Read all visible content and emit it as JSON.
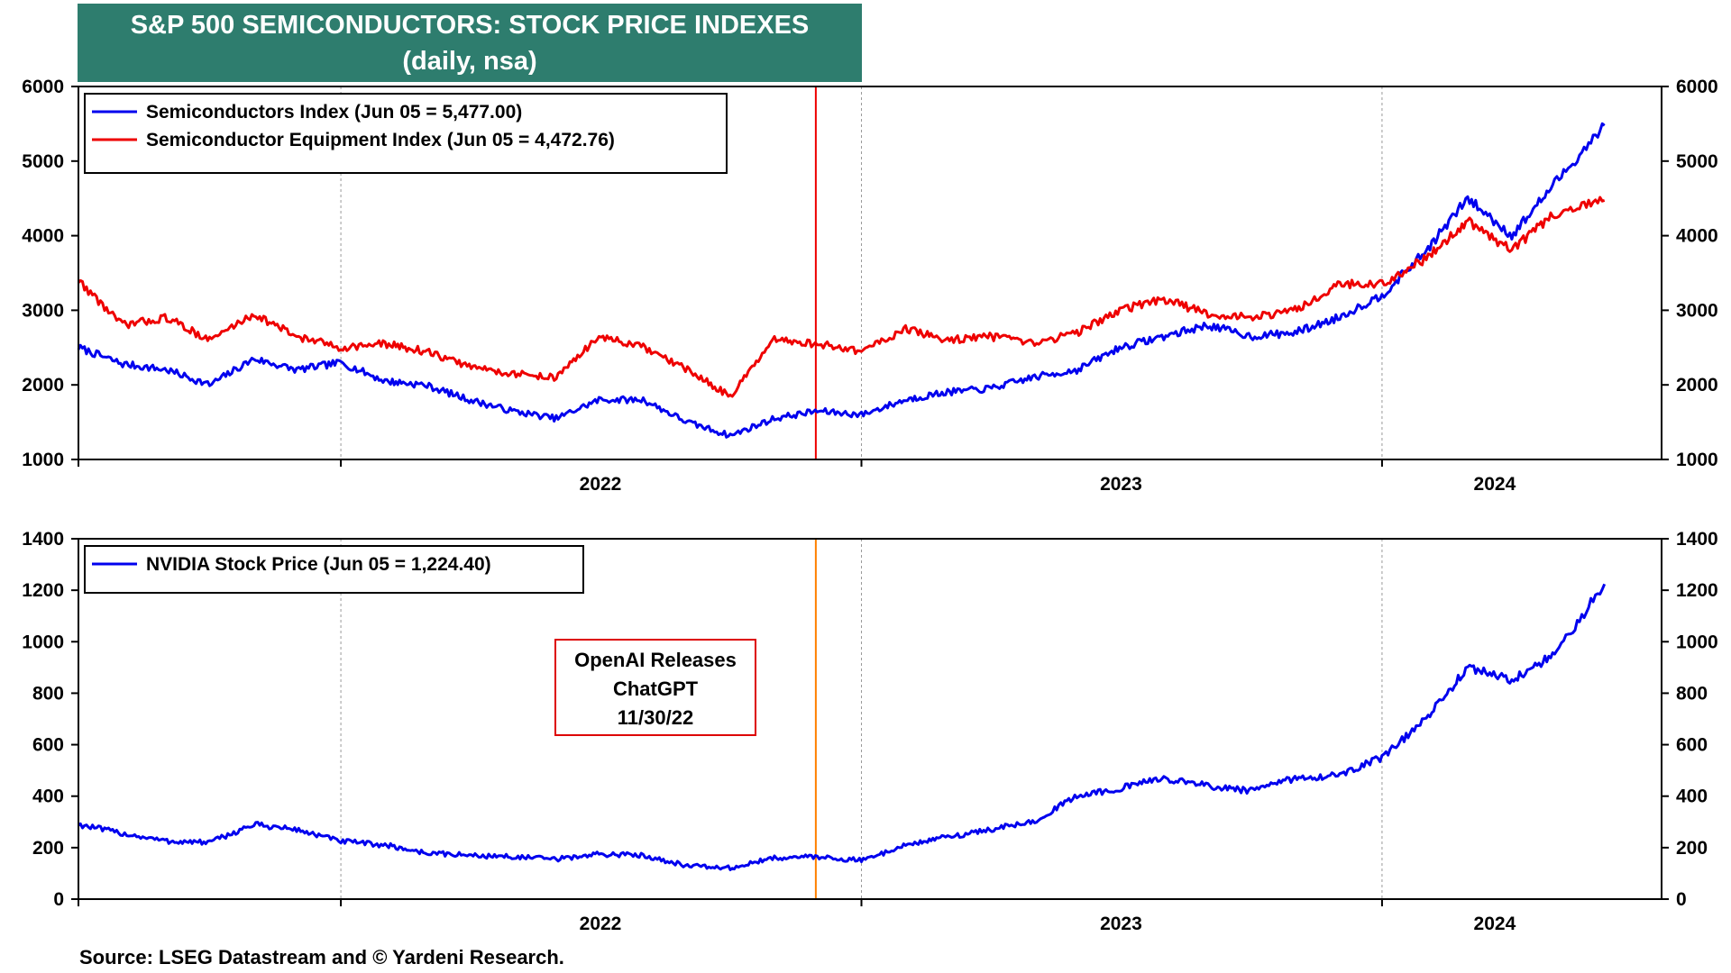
{
  "title": "S&P 500 SEMICONDUCTORS: STOCK PRICE INDEXES",
  "subtitle": "(daily, nsa)",
  "source": "Source: LSEG Datastream and © Yardeni Research.",
  "colors": {
    "title_bg": "#2e7d6e",
    "blue": "#0000ee",
    "red": "#ee0000",
    "orange": "#ff8000",
    "ann_border": "#dd0000"
  },
  "chart_data": [
    {
      "type": "line",
      "x_axis": {
        "start": "2021-07-01",
        "end": "2024-07-15",
        "ticks": [
          "2022",
          "2023",
          "2024"
        ]
      },
      "ylim": [
        1000,
        6000
      ],
      "yticks": [
        1000,
        2000,
        3000,
        4000,
        5000,
        6000
      ],
      "grid": "vertical dashed at year starts",
      "legend_position": "top-left",
      "vertical_marker": {
        "date": "2022-11-30",
        "color": "#ee0000"
      },
      "series": [
        {
          "name": "Semiconductors Index (Jun 05 = 5,477.00)",
          "color": "#0000ee",
          "points": [
            [
              "2021-07-01",
              2500
            ],
            [
              "2021-08-01",
              2280
            ],
            [
              "2021-09-01",
              2200
            ],
            [
              "2021-10-01",
              2000
            ],
            [
              "2021-11-01",
              2350
            ],
            [
              "2021-12-01",
              2200
            ],
            [
              "2022-01-01",
              2300
            ],
            [
              "2022-02-01",
              2050
            ],
            [
              "2022-03-01",
              2000
            ],
            [
              "2022-04-01",
              1800
            ],
            [
              "2022-05-01",
              1650
            ],
            [
              "2022-06-01",
              1550
            ],
            [
              "2022-07-01",
              1800
            ],
            [
              "2022-08-01",
              1800
            ],
            [
              "2022-09-01",
              1500
            ],
            [
              "2022-10-01",
              1320
            ],
            [
              "2022-11-01",
              1550
            ],
            [
              "2022-12-01",
              1650
            ],
            [
              "2023-01-01",
              1600
            ],
            [
              "2023-02-01",
              1800
            ],
            [
              "2023-03-01",
              1900
            ],
            [
              "2023-04-01",
              1950
            ],
            [
              "2023-05-01",
              2100
            ],
            [
              "2023-06-01",
              2200
            ],
            [
              "2023-07-01",
              2500
            ],
            [
              "2023-08-01",
              2650
            ],
            [
              "2023-09-01",
              2800
            ],
            [
              "2023-10-01",
              2650
            ],
            [
              "2023-11-01",
              2700
            ],
            [
              "2023-12-01",
              2900
            ],
            [
              "2024-01-01",
              3200
            ],
            [
              "2024-02-01",
              3800
            ],
            [
              "2024-03-01",
              4500
            ],
            [
              "2024-04-01",
              4000
            ],
            [
              "2024-05-01",
              4700
            ],
            [
              "2024-06-05",
              5477
            ]
          ]
        },
        {
          "name": "Semiconductor Equipment Index (Jun 05 = 4,472.76)",
          "color": "#ee0000",
          "points": [
            [
              "2021-07-01",
              3400
            ],
            [
              "2021-08-01",
              2800
            ],
            [
              "2021-09-01",
              2900
            ],
            [
              "2021-10-01",
              2600
            ],
            [
              "2021-11-01",
              2950
            ],
            [
              "2021-12-01",
              2650
            ],
            [
              "2022-01-01",
              2500
            ],
            [
              "2022-02-01",
              2550
            ],
            [
              "2022-03-01",
              2450
            ],
            [
              "2022-04-01",
              2250
            ],
            [
              "2022-05-01",
              2150
            ],
            [
              "2022-06-01",
              2100
            ],
            [
              "2022-07-01",
              2650
            ],
            [
              "2022-08-01",
              2500
            ],
            [
              "2022-09-01",
              2200
            ],
            [
              "2022-10-01",
              1850
            ],
            [
              "2022-11-01",
              2600
            ],
            [
              "2022-12-01",
              2550
            ],
            [
              "2023-01-01",
              2450
            ],
            [
              "2023-02-01",
              2750
            ],
            [
              "2023-03-01",
              2600
            ],
            [
              "2023-04-01",
              2650
            ],
            [
              "2023-05-01",
              2550
            ],
            [
              "2023-06-01",
              2700
            ],
            [
              "2023-07-01",
              3000
            ],
            [
              "2023-08-01",
              3150
            ],
            [
              "2023-09-01",
              2950
            ],
            [
              "2023-10-01",
              2900
            ],
            [
              "2023-11-01",
              3000
            ],
            [
              "2023-12-01",
              3350
            ],
            [
              "2024-01-01",
              3350
            ],
            [
              "2024-02-01",
              3700
            ],
            [
              "2024-03-01",
              4200
            ],
            [
              "2024-04-01",
              3800
            ],
            [
              "2024-05-01",
              4300
            ],
            [
              "2024-06-05",
              4473
            ]
          ]
        }
      ]
    },
    {
      "type": "line",
      "x_axis": {
        "start": "2021-07-01",
        "end": "2024-07-15",
        "ticks": [
          "2022",
          "2023",
          "2024"
        ]
      },
      "ylim": [
        0,
        1400
      ],
      "yticks": [
        0,
        200,
        400,
        600,
        800,
        1000,
        1200,
        1400
      ],
      "grid": "vertical dashed at year starts",
      "legend_position": "top-left",
      "vertical_marker": {
        "date": "2022-11-30",
        "color": "#ff8000"
      },
      "annotation": {
        "lines": [
          "OpenAI Releases",
          "ChatGPT",
          "11/30/22"
        ]
      },
      "series": [
        {
          "name": "NVIDIA Stock Price (Jun 05 = 1,224.40)",
          "color": "#0000ee",
          "points": [
            [
              "2021-07-01",
              290
            ],
            [
              "2021-08-01",
              255
            ],
            [
              "2021-09-01",
              225
            ],
            [
              "2021-10-01",
              220
            ],
            [
              "2021-11-01",
              290
            ],
            [
              "2021-12-01",
              270
            ],
            [
              "2022-01-01",
              225
            ],
            [
              "2022-02-01",
              210
            ],
            [
              "2022-03-01",
              180
            ],
            [
              "2022-04-01",
              170
            ],
            [
              "2022-05-01",
              165
            ],
            [
              "2022-06-01",
              155
            ],
            [
              "2022-07-01",
              175
            ],
            [
              "2022-08-01",
              170
            ],
            [
              "2022-09-01",
              130
            ],
            [
              "2022-10-01",
              120
            ],
            [
              "2022-11-01",
              160
            ],
            [
              "2022-12-01",
              165
            ],
            [
              "2023-01-01",
              150
            ],
            [
              "2023-02-01",
              210
            ],
            [
              "2023-03-01",
              240
            ],
            [
              "2023-04-01",
              270
            ],
            [
              "2023-05-01",
              300
            ],
            [
              "2023-06-01",
              400
            ],
            [
              "2023-07-01",
              430
            ],
            [
              "2023-08-01",
              470
            ],
            [
              "2023-09-01",
              440
            ],
            [
              "2023-10-01",
              420
            ],
            [
              "2023-11-01",
              470
            ],
            [
              "2023-12-01",
              480
            ],
            [
              "2024-01-01",
              550
            ],
            [
              "2024-02-01",
              700
            ],
            [
              "2024-03-01",
              900
            ],
            [
              "2024-04-01",
              850
            ],
            [
              "2024-05-01",
              950
            ],
            [
              "2024-06-05",
              1224
            ]
          ]
        }
      ]
    }
  ]
}
